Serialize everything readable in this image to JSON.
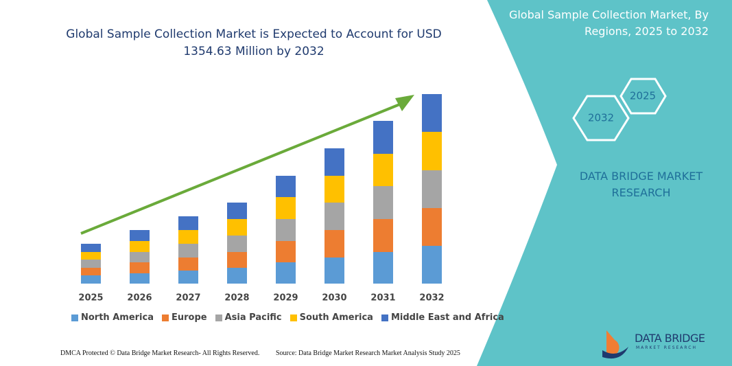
{
  "chart_data": {
    "type": "stacked_bar",
    "title": "Global Sample Collection Market is Expected to Account for USD 1354.63 Million by 2032",
    "categories": [
      "2025",
      "2026",
      "2027",
      "2028",
      "2029",
      "2030",
      "2031",
      "2032"
    ],
    "series": [
      {
        "name": "North America",
        "color": "#5b9bd5",
        "values": [
          12,
          15,
          19,
          23,
          31,
          38,
          46,
          55
        ]
      },
      {
        "name": "Europe",
        "color": "#ed7d31",
        "values": [
          11,
          16,
          19,
          23,
          31,
          40,
          48,
          55
        ]
      },
      {
        "name": "Asia Pacific",
        "color": "#a5a5a5",
        "values": [
          12,
          15,
          20,
          24,
          32,
          40,
          48,
          55
        ]
      },
      {
        "name": "South America",
        "color": "#ffc000",
        "values": [
          11,
          16,
          20,
          24,
          32,
          39,
          47,
          56
        ]
      },
      {
        "name": "Middle East and Africa",
        "color": "#4472c4",
        "values": [
          12,
          16,
          20,
          24,
          31,
          40,
          48,
          55
        ]
      }
    ]
  },
  "panel": {
    "title": "Global Sample Collection Market, By Regions, 2025 to 2032",
    "hex_start": "2025",
    "hex_end": "2032",
    "brand": "DATA BRIDGE MARKET RESEARCH"
  },
  "logo": {
    "name": "DATA BRIDGE",
    "tagline": "MARKET RESEARCH"
  },
  "footer": {
    "left": "DMCA Protected © Data Bridge Market Research- All Rights Reserved.",
    "right": "Source: Data Bridge Market Research  Market Analysis Study 2025"
  }
}
